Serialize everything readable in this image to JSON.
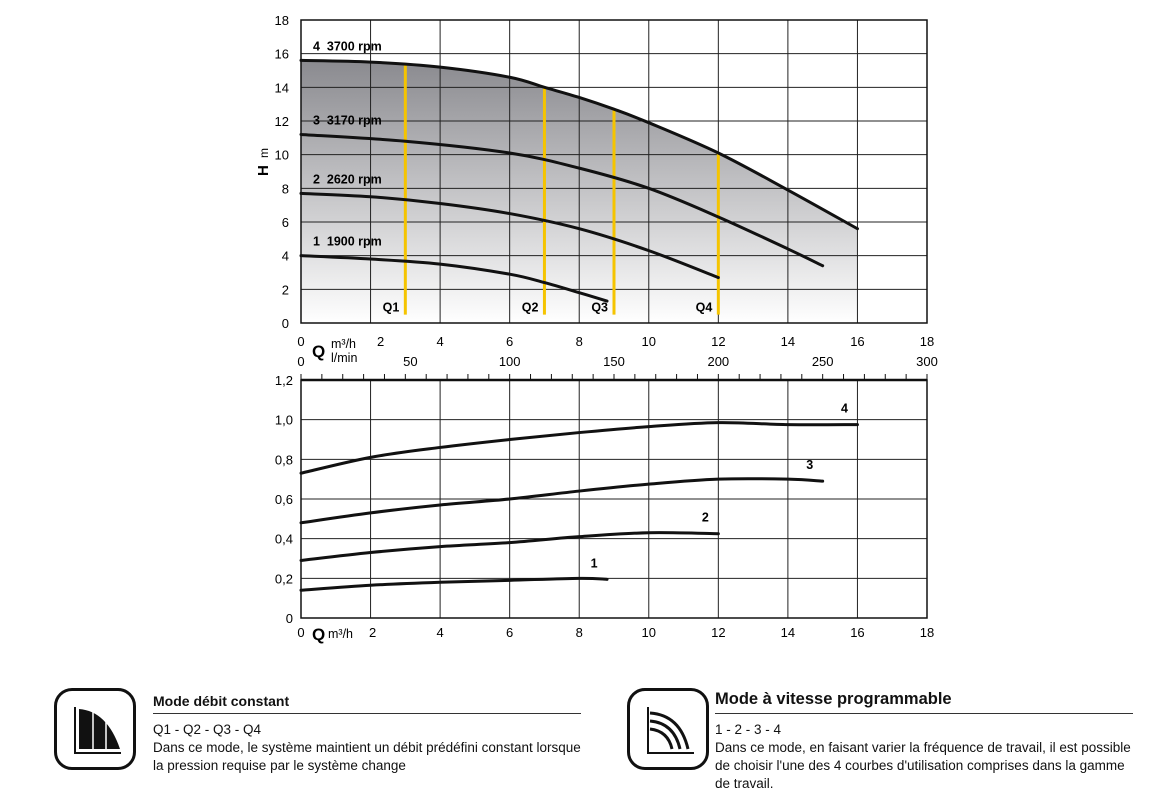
{
  "chart_data": [
    {
      "type": "line",
      "title": "",
      "ylabel": "H",
      "yunit": "m",
      "xlabel": "Q",
      "xunit_1": "m³/h",
      "xunit_2": "l/min",
      "xlim": [
        0,
        18
      ],
      "ylim": [
        0,
        18
      ],
      "xticks": [
        "0",
        "2",
        "4",
        "6",
        "8",
        "10",
        "12",
        "14",
        "16",
        "18"
      ],
      "yticks": [
        "0",
        "2",
        "4",
        "6",
        "8",
        "10",
        "12",
        "14",
        "16",
        "18"
      ],
      "x2ticks": [
        "0",
        "50",
        "100",
        "150",
        "200",
        "250",
        "300"
      ],
      "x2lim": [
        0,
        300
      ],
      "grid": true,
      "series": [
        {
          "name": "4  3700 rpm",
          "points": [
            [
              0,
              15.6
            ],
            [
              2,
              15.5
            ],
            [
              4,
              15.2
            ],
            [
              6,
              14.6
            ],
            [
              7,
              14.0
            ],
            [
              8,
              13.4
            ],
            [
              9,
              12.7
            ],
            [
              10,
              11.9
            ],
            [
              12,
              10.1
            ],
            [
              14,
              7.9
            ],
            [
              16,
              5.6
            ]
          ]
        },
        {
          "name": "3  3170 rpm",
          "points": [
            [
              0,
              11.2
            ],
            [
              3,
              10.8
            ],
            [
              6,
              10.1
            ],
            [
              8,
              9.2
            ],
            [
              10,
              8.0
            ],
            [
              12,
              6.3
            ],
            [
              14,
              4.4
            ],
            [
              15,
              3.4
            ]
          ]
        },
        {
          "name": "2  2620 rpm",
          "points": [
            [
              0,
              7.7
            ],
            [
              2,
              7.5
            ],
            [
              4,
              7.1
            ],
            [
              6,
              6.5
            ],
            [
              8,
              5.6
            ],
            [
              10,
              4.3
            ],
            [
              12,
              2.7
            ]
          ]
        },
        {
          "name": "1  1900 rpm",
          "points": [
            [
              0,
              4.0
            ],
            [
              2,
              3.8
            ],
            [
              4,
              3.5
            ],
            [
              6,
              2.9
            ],
            [
              7,
              2.4
            ],
            [
              8,
              1.8
            ],
            [
              8.8,
              1.3
            ]
          ]
        }
      ],
      "flow_lines": [
        {
          "name": "Q1",
          "x": 3
        },
        {
          "name": "Q2",
          "x": 7
        },
        {
          "name": "Q3",
          "x": 9
        },
        {
          "name": "Q4",
          "x": 12
        }
      ],
      "colors": {
        "curve": "#111111",
        "flow_line": "#f5c400",
        "shade_top": "#8a8a8f",
        "shade_bottom": "#ffffff"
      }
    },
    {
      "type": "line",
      "xlabel": "Q",
      "xunit": "m³/h",
      "xlim": [
        0,
        18
      ],
      "ylim": [
        0,
        1.2
      ],
      "xticks": [
        "0",
        "2",
        "4",
        "6",
        "8",
        "10",
        "12",
        "14",
        "16",
        "18"
      ],
      "yticks": [
        "0",
        "0,2",
        "0,4",
        "0,6",
        "0,8",
        "1,0",
        "1,2"
      ],
      "grid": true,
      "series": [
        {
          "name": "4",
          "points": [
            [
              0,
              0.73
            ],
            [
              2,
              0.81
            ],
            [
              4,
              0.86
            ],
            [
              6,
              0.9
            ],
            [
              8,
              0.935
            ],
            [
              10,
              0.965
            ],
            [
              12,
              0.985
            ],
            [
              14,
              0.975
            ],
            [
              16,
              0.975
            ]
          ]
        },
        {
          "name": "3",
          "points": [
            [
              0,
              0.48
            ],
            [
              2,
              0.53
            ],
            [
              4,
              0.57
            ],
            [
              6,
              0.6
            ],
            [
              8,
              0.64
            ],
            [
              10,
              0.675
            ],
            [
              12,
              0.7
            ],
            [
              14,
              0.7
            ],
            [
              15,
              0.69
            ]
          ]
        },
        {
          "name": "2",
          "points": [
            [
              0,
              0.29
            ],
            [
              2,
              0.33
            ],
            [
              4,
              0.36
            ],
            [
              6,
              0.38
            ],
            [
              8,
              0.41
            ],
            [
              10,
              0.43
            ],
            [
              12,
              0.425
            ]
          ]
        },
        {
          "name": "1",
          "points": [
            [
              0,
              0.14
            ],
            [
              2,
              0.165
            ],
            [
              4,
              0.18
            ],
            [
              6,
              0.19
            ],
            [
              8,
              0.2
            ],
            [
              8.8,
              0.195
            ]
          ]
        }
      ]
    }
  ],
  "modes": [
    {
      "title": "Mode débit constant",
      "sub": "Q1 - Q2 - Q3 - Q4",
      "desc": "Dans ce mode, le système maintient un débit prédéfini constant lorsque la pression requise par le système change"
    },
    {
      "title": "Mode à vitesse programmable",
      "sub": "1 - 2 - 3 - 4",
      "desc": "Dans ce mode, en faisant varier la fréquence de travail, il est possible de choisir l'une des 4 courbes d'utilisation comprises dans la gamme de travail."
    }
  ]
}
